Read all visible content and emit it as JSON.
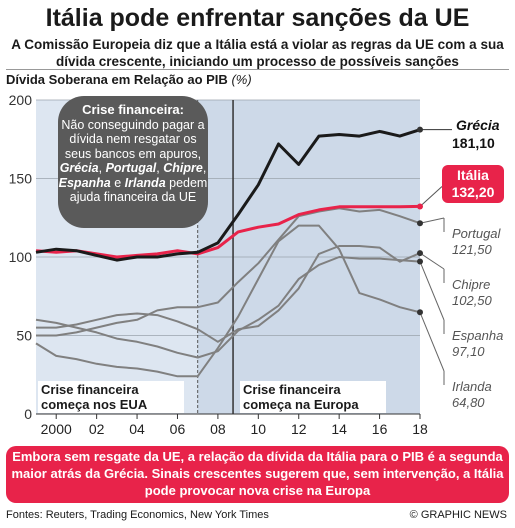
{
  "header": {
    "title": "Itália pode enfrentar sanções da UE",
    "subtitle": "A Comissão Europeia diz que a Itália está a violar as regras da UE com a sua dívida crescente, iniciando um processo de possíveis sanções",
    "axis_caption": "Dívida Soberana em Relação ao PIB",
    "axis_unit": "(%)"
  },
  "callout": {
    "title": "Crise financeira:",
    "text_a": "Não conseguindo pagar a dívida nem resgatar os seus bancos em apuros,",
    "c1": "Grécia",
    "sep1": ", ",
    "c2": "Portugal",
    "sep2": ", ",
    "c3": "Chipre",
    "sep3": ", ",
    "c4": "Espanha",
    "sep4": " e ",
    "c5": "Irlanda",
    "text_b": " pedem ajuda financeira da UE"
  },
  "periods": {
    "us": "Crise financeira começa nos EUA",
    "eu": "Crise financeira começa na Europa"
  },
  "chart_data": {
    "type": "line",
    "x_tick_labels": [
      "2000",
      "02",
      "04",
      "06",
      "08",
      "10",
      "12",
      "14",
      "16",
      "18"
    ],
    "x_ticks": [
      2000,
      2002,
      2004,
      2006,
      2008,
      2010,
      2012,
      2014,
      2016,
      2018
    ],
    "xlim": [
      1999,
      2018
    ],
    "ylim": [
      0,
      200
    ],
    "y_ticks": [
      0,
      50,
      100,
      150,
      200
    ],
    "grid": true,
    "shaded_periods": [
      [
        2007,
        2008.75
      ],
      [
        2008.75,
        2018
      ]
    ],
    "series": [
      {
        "name": "Grécia",
        "value_label": "181,10",
        "color": "#1a1a1a",
        "width": 3,
        "x": [
          1999,
          2000,
          2001,
          2002,
          2003,
          2004,
          2005,
          2006,
          2007,
          2008,
          2009,
          2010,
          2011,
          2012,
          2013,
          2014,
          2015,
          2016,
          2017,
          2018
        ],
        "y": [
          103,
          105,
          104,
          101,
          98,
          100,
          100,
          102,
          103,
          109,
          127,
          146,
          172,
          159,
          177,
          178,
          177,
          180,
          177,
          181.1
        ]
      },
      {
        "name": "Itália",
        "value_label": "132,20",
        "color": "#e8234a",
        "width": 3,
        "x": [
          1999,
          2000,
          2001,
          2002,
          2003,
          2004,
          2005,
          2006,
          2007,
          2008,
          2009,
          2010,
          2011,
          2012,
          2013,
          2014,
          2015,
          2016,
          2017,
          2018
        ],
        "y": [
          104,
          103,
          104,
          102,
          100,
          101,
          102,
          104,
          102,
          106,
          116,
          119,
          121,
          127,
          130,
          132,
          132,
          132,
          132,
          132.2
        ]
      },
      {
        "name": "Portugal",
        "value_label": "121,50",
        "color": "#808080",
        "width": 2,
        "x": [
          1999,
          2000,
          2001,
          2002,
          2003,
          2004,
          2005,
          2006,
          2007,
          2008,
          2009,
          2010,
          2011,
          2012,
          2013,
          2014,
          2015,
          2016,
          2017,
          2018
        ],
        "y": [
          50,
          50,
          52,
          55,
          58,
          60,
          66,
          68,
          68,
          71,
          84,
          96,
          111,
          126,
          129,
          131,
          129,
          130,
          126,
          121.5
        ]
      },
      {
        "name": "Chipre",
        "value_label": "102,50",
        "color": "#808080",
        "width": 2,
        "x": [
          1999,
          2000,
          2001,
          2002,
          2003,
          2004,
          2005,
          2006,
          2007,
          2008,
          2009,
          2010,
          2011,
          2012,
          2013,
          2014,
          2015,
          2016,
          2017,
          2018
        ],
        "y": [
          55,
          55,
          57,
          60,
          63,
          64,
          63,
          59,
          54,
          46,
          54,
          56,
          66,
          80,
          102,
          107,
          107,
          106,
          97,
          102.5
        ]
      },
      {
        "name": "Espanha",
        "value_label": "97,10",
        "color": "#808080",
        "width": 2,
        "x": [
          1999,
          2000,
          2001,
          2002,
          2003,
          2004,
          2005,
          2006,
          2007,
          2008,
          2009,
          2010,
          2011,
          2012,
          2013,
          2014,
          2015,
          2016,
          2017,
          2018
        ],
        "y": [
          60,
          58,
          55,
          52,
          48,
          46,
          43,
          39,
          36,
          40,
          53,
          60,
          69,
          86,
          95,
          100,
          99,
          99,
          98,
          97.1
        ]
      },
      {
        "name": "Irlanda",
        "value_label": "64,80",
        "color": "#808080",
        "width": 2,
        "x": [
          1999,
          2000,
          2001,
          2002,
          2003,
          2004,
          2005,
          2006,
          2007,
          2008,
          2009,
          2010,
          2011,
          2012,
          2013,
          2014,
          2015,
          2016,
          2017,
          2018
        ],
        "y": [
          45,
          37,
          35,
          32,
          30,
          29,
          27,
          24,
          24,
          42,
          62,
          86,
          110,
          120,
          120,
          105,
          77,
          73,
          68,
          64.8
        ]
      }
    ]
  },
  "bottom_note": "Embora sem resgate da UE, a relação da dívida da Itália para o PIB é a segunda maior atrás da Grécia. Sinais crescentes sugerem que, sem intervenção, a Itália pode provocar nova crise na Europa",
  "footer": {
    "sources": "Fontes: Reuters, Trading Economics, New York Times",
    "credit": "© GRAPHIC NEWS"
  },
  "colors": {
    "accent": "#e8234a",
    "callout_bg": "#5a5a5a",
    "shade": "#cdd9e8",
    "shade_light": "#dde6f1"
  }
}
